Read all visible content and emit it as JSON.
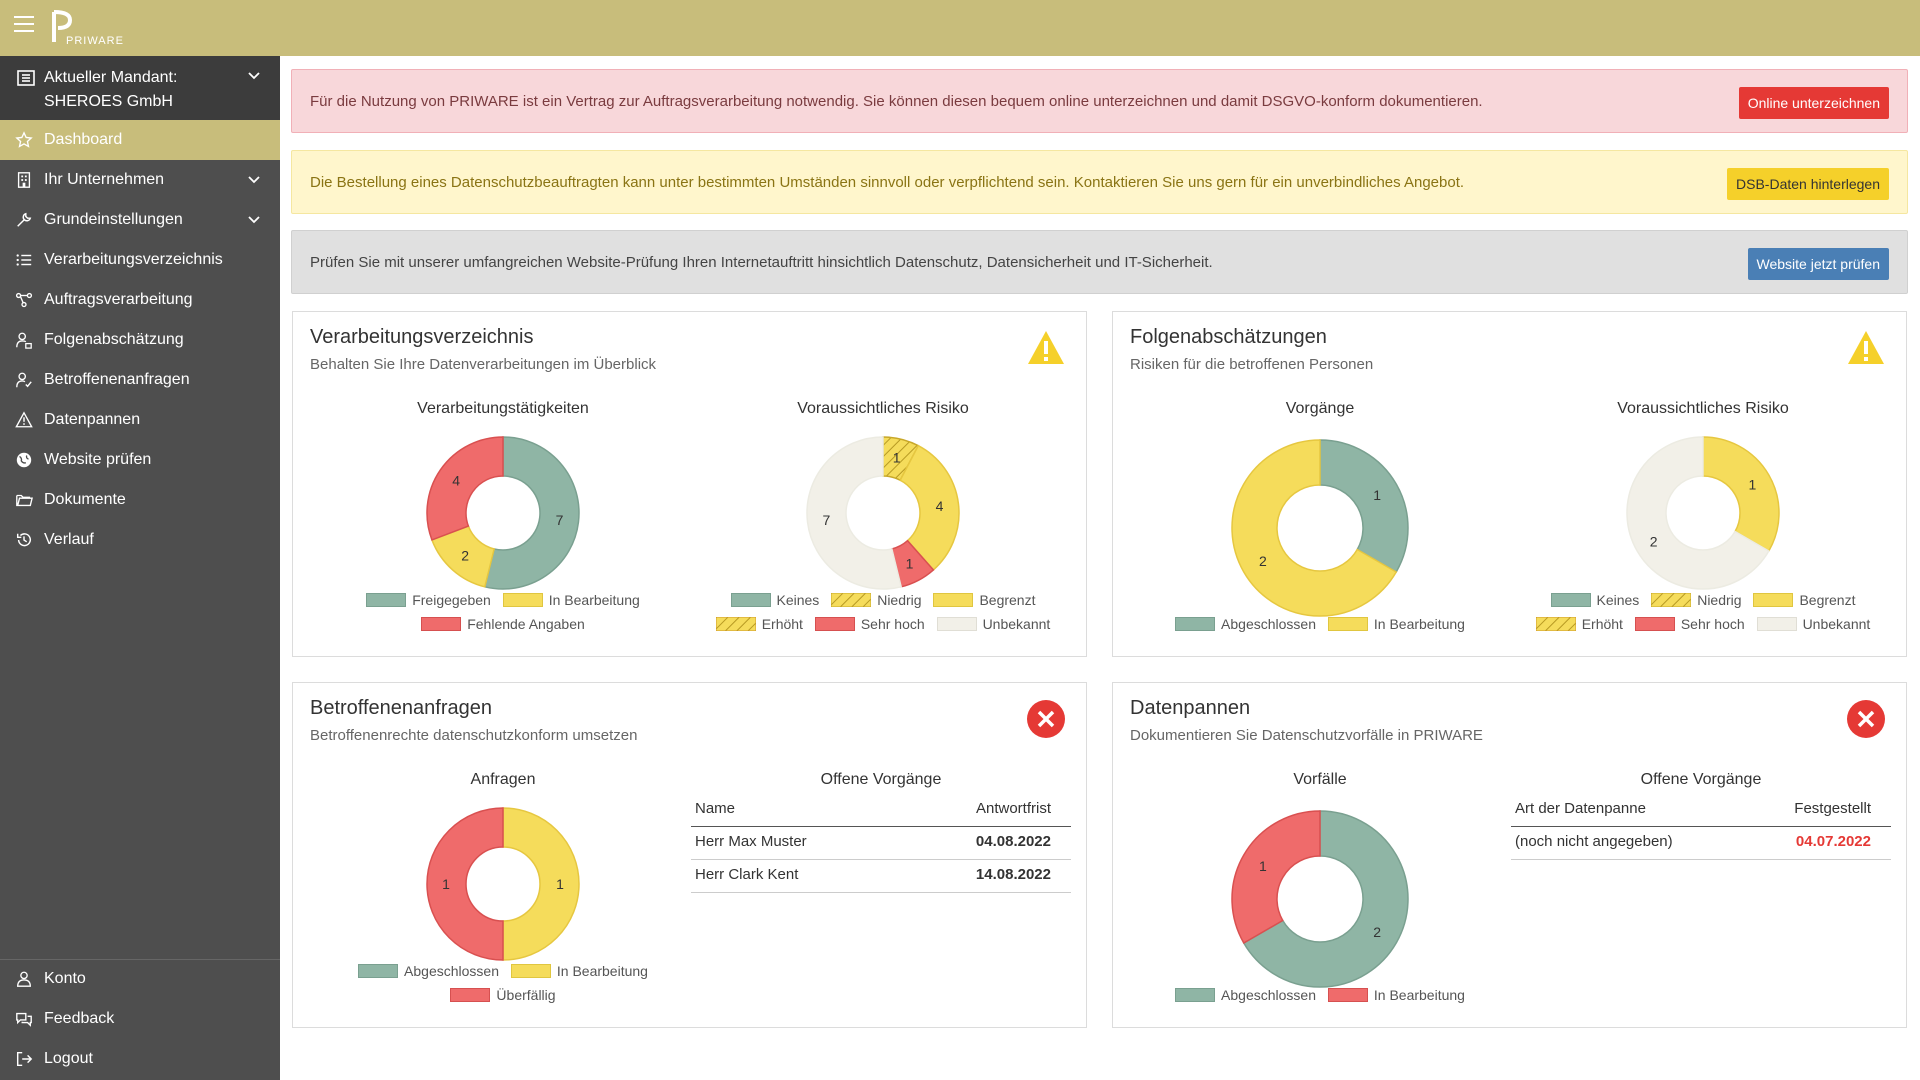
{
  "header": {
    "logo_text": "PRIWARE"
  },
  "sidebar": {
    "mandant_label": "Aktueller Mandant:",
    "mandant_name": "SHEROES GmbH",
    "items": [
      {
        "label": "Dashboard",
        "icon": "star-icon",
        "active": true
      },
      {
        "label": "Ihr Unternehmen",
        "icon": "building-icon",
        "chevron": true
      },
      {
        "label": "Grundeinstellungen",
        "icon": "wrench-icon",
        "chevron": true
      },
      {
        "label": "Verarbeitungsverzeichnis",
        "icon": "list-icon"
      },
      {
        "label": "Auftragsverarbeitung",
        "icon": "network-icon"
      },
      {
        "label": "Folgenabschätzung",
        "icon": "user-lock-icon"
      },
      {
        "label": "Betroffenenanfragen",
        "icon": "user-check-icon"
      },
      {
        "label": "Datenpannen",
        "icon": "warning-icon"
      },
      {
        "label": "Website prüfen",
        "icon": "globe-icon"
      },
      {
        "label": "Dokumente",
        "icon": "folder-icon"
      },
      {
        "label": "Verlauf",
        "icon": "history-icon"
      }
    ],
    "bottom_items": [
      {
        "label": "Konto",
        "icon": "user-icon"
      },
      {
        "label": "Feedback",
        "icon": "comments-icon"
      },
      {
        "label": "Logout",
        "icon": "logout-icon"
      }
    ]
  },
  "alerts": {
    "contract": {
      "text": "Für die Nutzung von PRIWARE ist ein Vertrag zur Auftragsverarbeitung notwendig. Sie können diesen bequem online unterzeichnen und damit DSGVO-konform dokumentieren.",
      "button": "Online unterzeichnen",
      "color": "#e53935"
    },
    "dsb": {
      "text": "Die Bestellung eines Datenschutzbeauftragten kann unter bestimmten Umständen sinnvoll oder verpflichtend sein. Kontaktieren Sie uns gern für ein unverbindliches Angebot.",
      "button": "DSB-Daten hinterlegen",
      "color": "#f5d02a"
    },
    "website": {
      "text": "Prüfen Sie mit unserer umfangreichen Website-Prüfung Ihren Internetauftritt hinsichtlich Datenschutz, Datensicherheit und IT-Sicherheit.",
      "button": "Website jetzt prüfen",
      "color": "#4a7fb5"
    }
  },
  "colors": {
    "green": "#8fb5a5",
    "yellow": "#f5dc5b",
    "red": "#ef6b6b",
    "unknown": "#f2f0e8",
    "hatched": "#e7c84a"
  },
  "cards": {
    "verarbeitung": {
      "title": "Verarbeitungsverzeichnis",
      "subtitle": "Behalten Sie Ihre Datenverarbeitungen im Überblick",
      "icon": "warning-triangle-icon",
      "chart1_title": "Verarbeitungstätigkeiten",
      "chart2_title": "Voraussichtliches Risiko",
      "chart1_legend": [
        "Freigegeben",
        "In Bearbeitung",
        "Fehlende Angaben"
      ],
      "chart2_legend": [
        "Keines",
        "Niedrig",
        "Begrenzt",
        "Erhöht",
        "Sehr hoch",
        "Unbekannt"
      ]
    },
    "folgen": {
      "title": "Folgenabschätzungen",
      "subtitle": "Risiken für die betroffenen Personen",
      "icon": "warning-triangle-icon",
      "chart1_title": "Vorgänge",
      "chart2_title": "Voraussichtliches Risiko",
      "chart1_legend": [
        "Abgeschlossen",
        "In Bearbeitung"
      ],
      "chart2_legend": [
        "Keines",
        "Niedrig",
        "Begrenzt",
        "Erhöht",
        "Sehr hoch",
        "Unbekannt"
      ]
    },
    "anfragen": {
      "title": "Betroffenenanfragen",
      "subtitle": "Betroffenenrechte datenschutzkonform umsetzen",
      "icon": "error-circle-icon",
      "chart1_title": "Anfragen",
      "chart1_legend": [
        "Abgeschlossen",
        "In Bearbeitung",
        "Überfällig"
      ],
      "table_title": "Offene Vorgänge",
      "table_headers": [
        "Name",
        "Antwortfrist"
      ],
      "table_rows": [
        {
          "name": "Herr Max Muster",
          "date": "04.08.2022"
        },
        {
          "name": "Herr Clark Kent",
          "date": "14.08.2022"
        }
      ]
    },
    "pannen": {
      "title": "Datenpannen",
      "subtitle": "Dokumentieren Sie Datenschutzvorfälle in PRIWARE",
      "icon": "error-circle-icon",
      "chart1_title": "Vorfälle",
      "chart1_legend": [
        "Abgeschlossen",
        "In Bearbeitung"
      ],
      "table_title": "Offene Vorgänge",
      "table_headers": [
        "Art der Datenpanne",
        "Festgestellt"
      ],
      "table_rows": [
        {
          "name": "(noch nicht angegeben)",
          "date": "04.07.2022"
        }
      ]
    }
  },
  "chart_data": [
    {
      "type": "pie",
      "id": "verarbeitung-taetigkeiten",
      "title": "Verarbeitungstätigkeiten",
      "slices": [
        {
          "label": "Freigegeben",
          "value": 7,
          "color": "#8fb5a5"
        },
        {
          "label": "In Bearbeitung",
          "value": 2,
          "color": "#f5dc5b"
        },
        {
          "label": "Fehlende Angaben",
          "value": 4,
          "color": "#ef6b6b"
        }
      ]
    },
    {
      "type": "pie",
      "id": "verarbeitung-risiko",
      "title": "Voraussichtliches Risiko",
      "slices": [
        {
          "label": "Niedrig",
          "value": 1,
          "color": "hatch"
        },
        {
          "label": "Begrenzt",
          "value": 4,
          "color": "#f5dc5b"
        },
        {
          "label": "Sehr hoch",
          "value": 1,
          "color": "#ef6b6b"
        },
        {
          "label": "Unbekannt",
          "value": 7,
          "color": "#f2f0e8"
        }
      ]
    },
    {
      "type": "pie",
      "id": "folgen-vorgaenge",
      "title": "Vorgänge",
      "slices": [
        {
          "label": "Abgeschlossen",
          "value": 1,
          "color": "#8fb5a5"
        },
        {
          "label": "In Bearbeitung",
          "value": 2,
          "color": "#f5dc5b"
        }
      ]
    },
    {
      "type": "pie",
      "id": "folgen-risiko",
      "title": "Voraussichtliches Risiko",
      "slices": [
        {
          "label": "Begrenzt",
          "value": 1,
          "color": "#f5dc5b"
        },
        {
          "label": "Unbekannt",
          "value": 2,
          "color": "#f2f0e8"
        }
      ]
    },
    {
      "type": "pie",
      "id": "anfragen",
      "title": "Anfragen",
      "slices": [
        {
          "label": "In Bearbeitung",
          "value": 1,
          "color": "#f5dc5b"
        },
        {
          "label": "Überfällig",
          "value": 1,
          "color": "#ef6b6b"
        }
      ]
    },
    {
      "type": "pie",
      "id": "vorfaelle",
      "title": "Vorfälle",
      "slices": [
        {
          "label": "Abgeschlossen",
          "value": 2,
          "color": "#8fb5a5"
        },
        {
          "label": "In Bearbeitung",
          "value": 1,
          "color": "#ef6b6b"
        }
      ]
    }
  ]
}
